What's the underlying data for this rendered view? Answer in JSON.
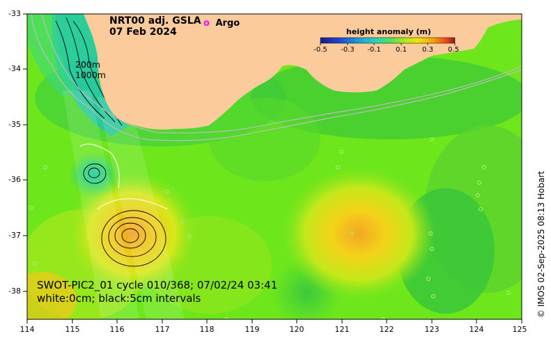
{
  "map": {
    "title_line1": "NRT00 adj. GSLA",
    "title_line2": "07 Feb 2024",
    "legend_argo_symbol": "o",
    "legend_argo_label": "Argo",
    "contour_label_200": "200m",
    "contour_label_1000": "1000m",
    "swath_info_line1": "SWOT-PIC2_01 cycle 010/368; 07/02/24 03:41",
    "swath_info_line2": "white:0cm; black:5cm intervals",
    "credit": "© IMOS 02-Sep-2025 08:13 Hobart",
    "lon_range": [
      114,
      125
    ],
    "lat_range": [
      -38.5,
      -33
    ]
  },
  "colorbar": {
    "title": "height anomaly (m)",
    "ticks": [
      "-0.5",
      "-0.3",
      "-0.1",
      "0.1",
      "0.3",
      "0.5"
    ],
    "range": [
      -0.5,
      0.5
    ],
    "colors": [
      "#1a1a8c",
      "#1e4bd2",
      "#1fa7d8",
      "#2bd6b4",
      "#4fe05a",
      "#a8e81c",
      "#f0e60a",
      "#f5a20e",
      "#e8461a",
      "#8c1a12"
    ]
  },
  "axes": {
    "lat_ticks": [
      "-33",
      "-34",
      "-35",
      "-36",
      "-37",
      "-38"
    ],
    "lon_ticks": [
      "114",
      "115",
      "116",
      "117",
      "118",
      "119",
      "120",
      "121",
      "122",
      "123",
      "124",
      "125"
    ]
  },
  "colors": {
    "land": "#fbcb9b",
    "ocean_base": "#6ee61c",
    "argo": "#ff00ff"
  }
}
